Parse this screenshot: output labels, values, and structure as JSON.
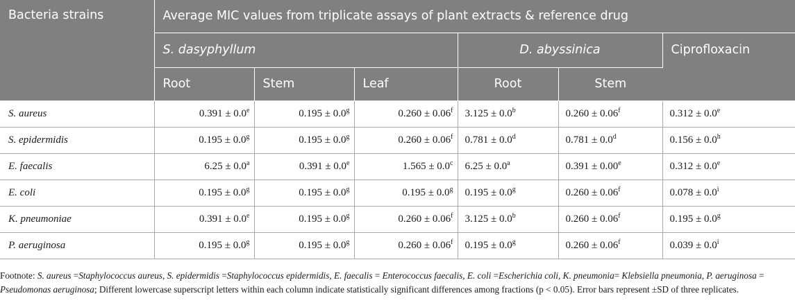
{
  "header": {
    "strains": "Bacteria strains",
    "average": "Average MIC values from triplicate assays of plant extracts & reference drug",
    "plant1": "S. dasyphyllum",
    "plant2": "D. abyssinica",
    "drug": "Ciprofloxacin",
    "root1": "Root",
    "stem1": "Stem",
    "leaf1": "Leaf",
    "root2": "Root",
    "stem2": "Stem"
  },
  "rows": [
    {
      "strain": "S. aureus",
      "c": [
        [
          "0.391 ± 0.0",
          "e"
        ],
        [
          "0.195 ± 0.0",
          "g"
        ],
        [
          "0.260 ± 0.06",
          "f"
        ],
        [
          "3.125 ± 0.0",
          "b"
        ],
        [
          "0.260 ± 0.06",
          "f"
        ],
        [
          "0.312 ± 0.0",
          "e"
        ]
      ]
    },
    {
      "strain": "S. epidermidis",
      "c": [
        [
          "0.195 ± 0.0",
          "g"
        ],
        [
          "0.195 ± 0.0",
          "g"
        ],
        [
          "0.260 ± 0.06",
          "f"
        ],
        [
          "0.781 ± 0.0",
          "d"
        ],
        [
          "0.781 ± 0.0",
          "d"
        ],
        [
          "0.156 ± 0.0",
          "h"
        ]
      ]
    },
    {
      "strain": "E. faecalis",
      "c": [
        [
          "6.25 ± 0.0",
          "a"
        ],
        [
          "0.391 ± 0.0",
          "e"
        ],
        [
          "1.565 ± 0.0",
          "c"
        ],
        [
          "6.25 ± 0.0",
          "a"
        ],
        [
          "0.391 ± 0.00",
          "e"
        ],
        [
          "0.312 ± 0.0",
          "e"
        ]
      ]
    },
    {
      "strain": "E. coli",
      "c": [
        [
          "0.195 ± 0.0",
          "g"
        ],
        [
          "0.195 ± 0.0",
          "g"
        ],
        [
          "0.195 ± 0.0",
          "g"
        ],
        [
          "0.195 ± 0.0",
          "g"
        ],
        [
          "0.260 ± 0.06",
          "f"
        ],
        [
          "0.078 ± 0.0",
          "i"
        ]
      ]
    },
    {
      "strain": "K. pneumoniae",
      "c": [
        [
          "0.391 ± 0.0",
          "e"
        ],
        [
          "0.195 ± 0.0",
          "g"
        ],
        [
          "0.260 ± 0.06",
          "f"
        ],
        [
          "3.125 ± 0.0",
          "b"
        ],
        [
          "0.260 ± 0.06",
          "f"
        ],
        [
          "0.195 ± 0.0",
          "g"
        ]
      ]
    },
    {
      "strain": "P. aeruginosa",
      "c": [
        [
          "0.195 ± 0.0",
          "g"
        ],
        [
          "0.195 ± 0.0",
          "g"
        ],
        [
          "0.260 ± 0.06",
          "f"
        ],
        [
          "0.195 ± 0.0",
          "g"
        ],
        [
          "0.260 ± 0.06",
          "f"
        ],
        [
          "0.039 ± 0.0",
          "i"
        ]
      ]
    }
  ],
  "footnote": {
    "label": "Footnote: ",
    "parts": [
      [
        "S. aureus",
        true
      ],
      [
        " =",
        false
      ],
      [
        "Staphylococcus aureus",
        true
      ],
      [
        ", ",
        false
      ],
      [
        "S. epidermidis",
        true
      ],
      [
        " =",
        false
      ],
      [
        "Staphylococcus epidermidis",
        true
      ],
      [
        ", ",
        false
      ],
      [
        "E. faecalis",
        true
      ],
      [
        " = ",
        false
      ],
      [
        "Enterococcus faecalis",
        true
      ],
      [
        ", ",
        false
      ],
      [
        "E. coli",
        true
      ],
      [
        " =",
        false
      ],
      [
        "Escherichia coli",
        true
      ],
      [
        ", ",
        false
      ],
      [
        "K. pneumonia",
        true
      ],
      [
        "= ",
        false
      ],
      [
        "Klebsiella pneumonia",
        true
      ],
      [
        ", ",
        false
      ],
      [
        "P. aeruginosa",
        true
      ],
      [
        " = ",
        false
      ],
      [
        "Pseudomonas aeruginosa",
        true
      ],
      [
        "; Different lowercase superscript letters within each column indicate statistically significant differences among fractions (p < 0.05). Error bars represent ±SD of three replicates.",
        false
      ]
    ]
  },
  "colors": {
    "header_bg": "#808080",
    "header_text": "#ffffff",
    "rule": "#a9a9a9"
  }
}
